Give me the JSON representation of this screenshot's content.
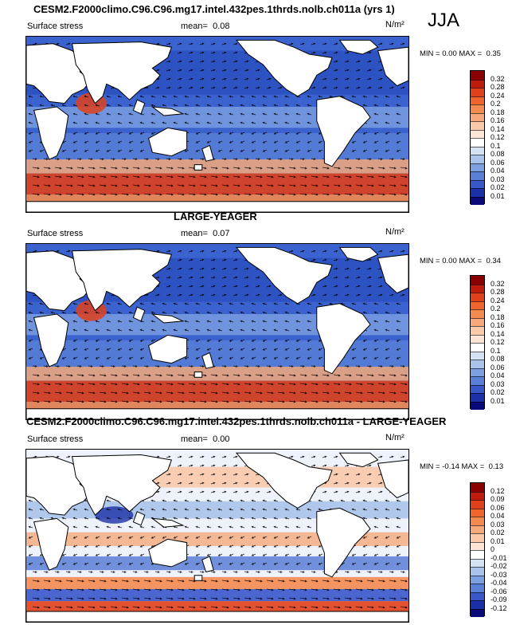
{
  "season": "JJA",
  "panels": [
    {
      "title": "CESM2.F2000climo.C96.C96.mg17.intel.432pes.1thrds.nolb.ch011a (yrs 1)",
      "variable": "Surface stress",
      "mean_label": "mean=",
      "mean_value": "0.08",
      "units": "N/m²",
      "min_label": "MIN =",
      "min_value": "0.00",
      "max_label": "MAX =",
      "max_value": "0.35",
      "colorbar_levels": [
        "0.32",
        "0.28",
        "0.24",
        "0.2",
        "0.18",
        "0.16",
        "0.14",
        "0.12",
        "0.1",
        "0.08",
        "0.06",
        "0.04",
        "0.03",
        "0.02",
        "0.01"
      ],
      "colorbar_colors": [
        "#8b0000",
        "#c01c0e",
        "#e0401b",
        "#f0652d",
        "#f38a50",
        "#f6a97a",
        "#f9c9a9",
        "#fde5d6",
        "#ffffff",
        "#d5e2f4",
        "#a9c3ea",
        "#7da0e0",
        "#5a7fd6",
        "#3957c9",
        "#1b30a8",
        "#0a0a7a"
      ],
      "map_kind": "abs"
    },
    {
      "title": "LARGE-YEAGER",
      "variable": "Surface stress",
      "mean_label": "mean=",
      "mean_value": "0.07",
      "units": "N/m²",
      "min_label": "MIN =",
      "min_value": "0.00",
      "max_label": "MAX =",
      "max_value": "0.34",
      "colorbar_levels": [
        "0.32",
        "0.28",
        "0.24",
        "0.2",
        "0.18",
        "0.16",
        "0.14",
        "0.12",
        "0.1",
        "0.08",
        "0.06",
        "0.04",
        "0.03",
        "0.02",
        "0.01"
      ],
      "colorbar_colors": [
        "#8b0000",
        "#c01c0e",
        "#e0401b",
        "#f0652d",
        "#f38a50",
        "#f6a97a",
        "#f9c9a9",
        "#fde5d6",
        "#ffffff",
        "#d5e2f4",
        "#a9c3ea",
        "#7da0e0",
        "#5a7fd6",
        "#3957c9",
        "#1b30a8",
        "#0a0a7a"
      ],
      "map_kind": "abs"
    },
    {
      "title": "CESM2.F2000climo.C96.C96.mg17.intel.432pes.1thrds.nolb.ch011a - LARGE-YEAGER",
      "variable": "Surface stress",
      "mean_label": "mean=",
      "mean_value": "0.00",
      "units": "N/m²",
      "min_label": "MIN =",
      "min_value": "-0.14",
      "max_label": "MAX =",
      "max_value": "0.13",
      "colorbar_levels": [
        "0.12",
        "0.09",
        "0.06",
        "0.04",
        "0.03",
        "0.02",
        "0.01",
        "0",
        "-0.01",
        "-0.02",
        "-0.03",
        "-0.04",
        "-0.06",
        "-0.09",
        "-0.12"
      ],
      "colorbar_colors": [
        "#8b0000",
        "#c01c0e",
        "#e0401b",
        "#f0652d",
        "#f38a50",
        "#f6a97a",
        "#f9c9a9",
        "#fde5d6",
        "#ffffff",
        "#d5e2f4",
        "#a9c3ea",
        "#7da0e0",
        "#5a7fd6",
        "#3957c9",
        "#1b30a8",
        "#0a0a7a"
      ],
      "map_kind": "diff"
    }
  ]
}
